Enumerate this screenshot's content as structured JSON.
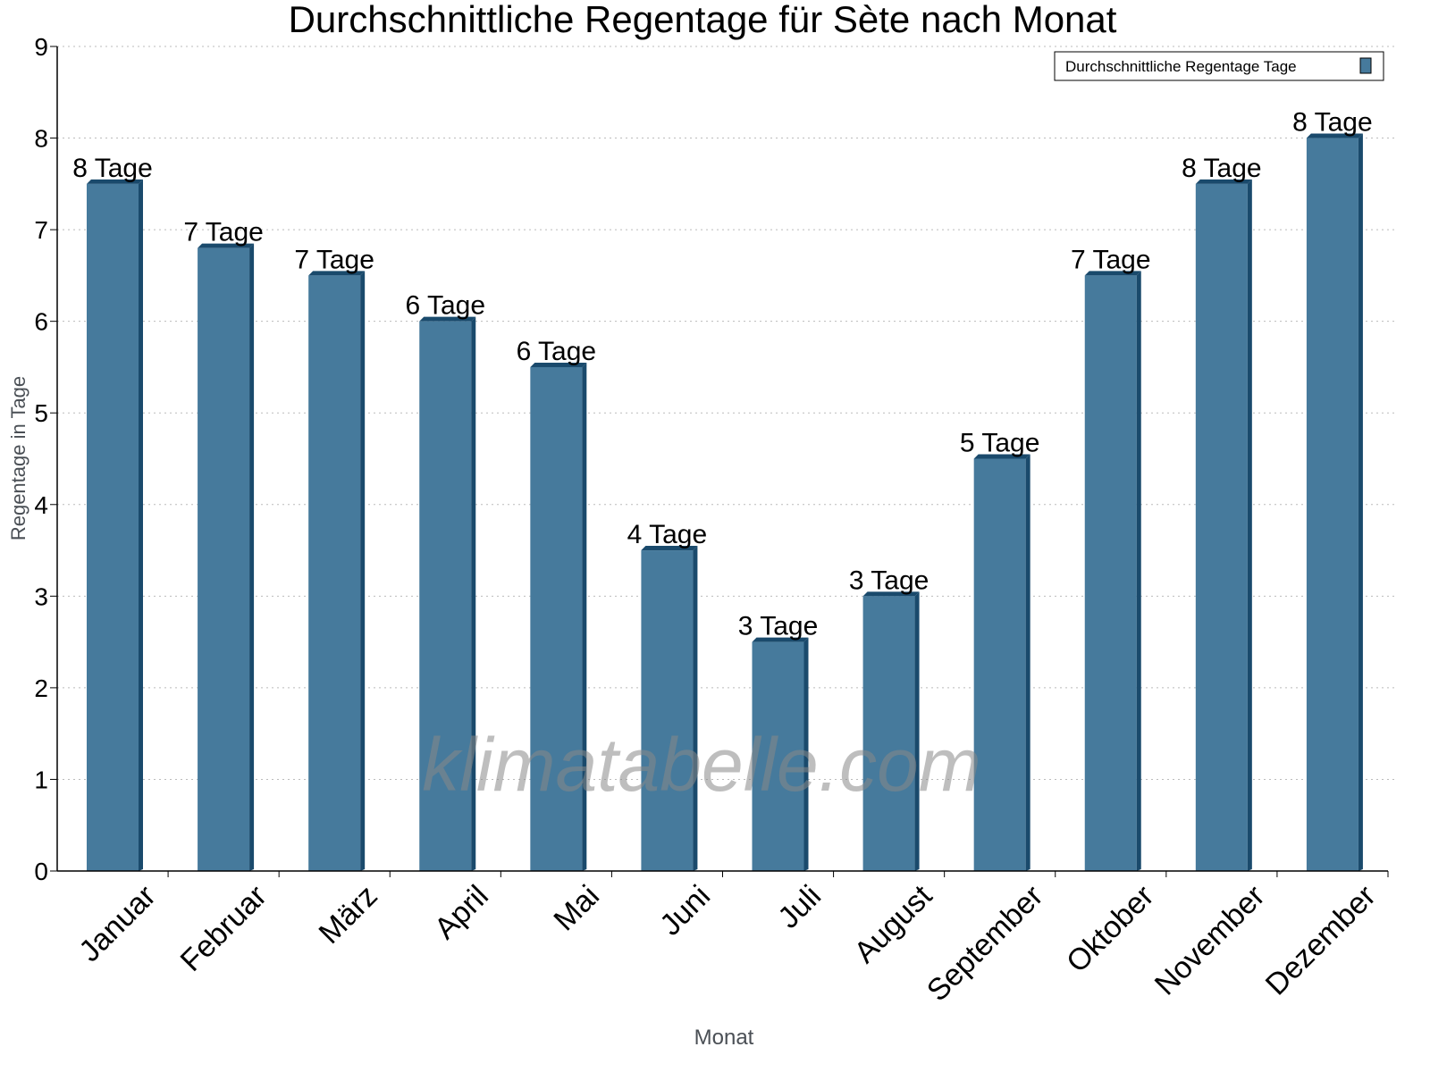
{
  "chart_data": {
    "type": "bar",
    "title": "Durchschnittliche Regentage für Sète nach Monat",
    "xlabel": "Monat",
    "ylabel": "Regentage in Tage",
    "categories": [
      "Januar",
      "Februar",
      "März",
      "April",
      "Mai",
      "Juni",
      "Juli",
      "August",
      "September",
      "Oktober",
      "November",
      "Dezember"
    ],
    "series": [
      {
        "name": "Durchschnittliche Regentage Tage",
        "values": [
          7.5,
          6.8,
          6.5,
          6.0,
          5.5,
          3.5,
          2.5,
          3.0,
          4.5,
          6.5,
          7.5,
          8.0
        ],
        "labels": [
          "8 Tage",
          "7 Tage",
          "7 Tage",
          "6 Tage",
          "6 Tage",
          "4 Tage",
          "3 Tage",
          "3 Tage",
          "5 Tage",
          "7 Tage",
          "8 Tage",
          "8 Tage"
        ]
      }
    ],
    "ylim": [
      0,
      9
    ],
    "yticks": [
      "0",
      "1",
      "2",
      "3",
      "4",
      "5",
      "6",
      "7",
      "8",
      "9"
    ],
    "grid": true,
    "legend_position": "top-right",
    "colors": {
      "bar": "#467a9c",
      "bar_side": "#1a4a6c"
    },
    "watermark": "klimatabelle.com"
  }
}
